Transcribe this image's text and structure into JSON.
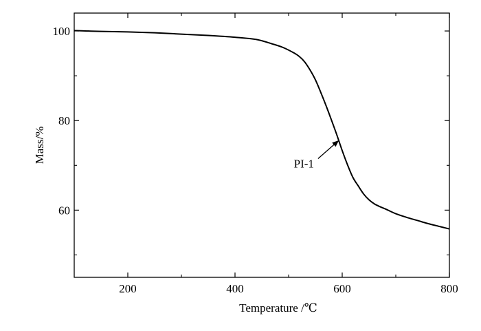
{
  "chart_data": {
    "type": "line",
    "xlabel": "Temperature /℃",
    "ylabel": "Mass/%",
    "xlim": [
      100,
      800
    ],
    "ylim": [
      45,
      104
    ],
    "x_ticks": [
      200,
      400,
      600,
      800
    ],
    "y_ticks": [
      60,
      80,
      100
    ],
    "x_minor_ticks": [
      300,
      500,
      700
    ],
    "y_minor_ticks": [
      50,
      70,
      90
    ],
    "grid": false,
    "series": [
      {
        "name": "PI-1",
        "x": [
          100,
          150,
          200,
          250,
          300,
          350,
          400,
          440,
          470,
          490,
          510,
          520,
          530,
          540,
          550,
          560,
          570,
          580,
          590,
          600,
          610,
          620,
          630,
          640,
          650,
          660,
          670,
          680,
          700,
          720,
          740,
          760,
          780,
          800
        ],
        "y": [
          100.1,
          99.9,
          99.8,
          99.6,
          99.3,
          99.0,
          98.6,
          98.1,
          97.1,
          96.3,
          95.1,
          94.3,
          93.1,
          91.3,
          89.1,
          86.3,
          83.3,
          80.1,
          76.8,
          73.3,
          70.1,
          67.3,
          65.4,
          63.6,
          62.3,
          61.4,
          60.8,
          60.3,
          59.2,
          58.4,
          57.7,
          57.0,
          56.4,
          55.8
        ],
        "color": "#000000"
      }
    ],
    "annotations": [
      {
        "text": "PI-1",
        "arrow_to": {
          "x": 593,
          "y": 75.5
        },
        "arrow_from": {
          "x": 555,
          "y": 71.5
        }
      }
    ]
  }
}
